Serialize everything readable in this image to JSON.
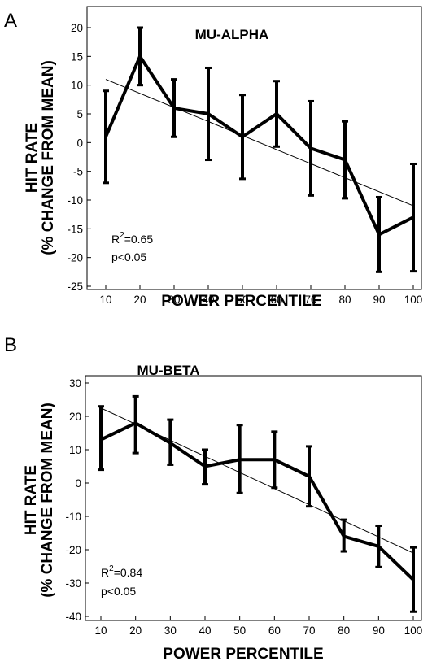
{
  "chart_data": [
    {
      "type": "line",
      "panel_label": "A",
      "title": "MU-ALPHA",
      "xlabel": "POWER PERCENTILE",
      "ylabel": [
        "HIT RATE",
        "(% CHANGE FROM MEAN)"
      ],
      "x": [
        10,
        20,
        30,
        40,
        50,
        60,
        70,
        80,
        90,
        100
      ],
      "xticks": [
        10,
        20,
        30,
        40,
        50,
        60,
        70,
        80,
        90,
        100
      ],
      "yticks": [
        20,
        15,
        10,
        5,
        0,
        -5,
        -10,
        -15,
        -20,
        -25
      ],
      "ylim": [
        -25,
        22
      ],
      "series": [
        {
          "values": [
            1,
            15,
            6,
            5,
            1,
            5,
            -1,
            -3,
            -16,
            -13
          ],
          "error_upper": [
            9,
            20,
            11,
            13,
            8.3,
            10.7,
            7.2,
            3.7,
            -9.5,
            -3.7
          ],
          "error_lower": [
            -7,
            10,
            1,
            -3,
            -6.3,
            -0.7,
            -9.2,
            -9.7,
            -22.5,
            -22.4
          ]
        }
      ],
      "fit_line": {
        "x": [
          10,
          100
        ],
        "y": [
          11,
          -11
        ]
      },
      "stats": {
        "r_base": "R",
        "r_sup": "2",
        "r_value": "=0.65",
        "p": "p<0.05"
      },
      "grid": false
    },
    {
      "type": "line",
      "panel_label": "B",
      "title": "MU-BETA",
      "xlabel": "POWER PERCENTILE",
      "ylabel": [
        "HIT RATE",
        "(% CHANGE FROM MEAN)"
      ],
      "x": [
        10,
        20,
        30,
        40,
        50,
        60,
        70,
        80,
        90,
        100
      ],
      "xticks": [
        10,
        20,
        30,
        40,
        50,
        60,
        70,
        80,
        90,
        100
      ],
      "yticks": [
        30,
        20,
        10,
        0,
        -10,
        -20,
        -30,
        -40
      ],
      "ylim": [
        -40,
        30
      ],
      "series": [
        {
          "values": [
            13,
            18,
            12,
            5,
            7,
            7,
            2,
            -16,
            -19,
            -29
          ],
          "error_upper": [
            23,
            26,
            19,
            10,
            17.4,
            15.4,
            11,
            -11,
            -12.8,
            -19.3
          ],
          "error_lower": [
            4,
            9,
            5.5,
            -0.4,
            -3,
            -1.4,
            -7,
            -20.5,
            -25.2,
            -38.6
          ]
        }
      ],
      "fit_line": {
        "x": [
          10,
          100
        ],
        "y": [
          22.5,
          -21
        ]
      },
      "stats": {
        "r_base": "R",
        "r_sup": "2",
        "r_value": "=0.84",
        "p": "p<0.05"
      },
      "grid": false
    }
  ]
}
